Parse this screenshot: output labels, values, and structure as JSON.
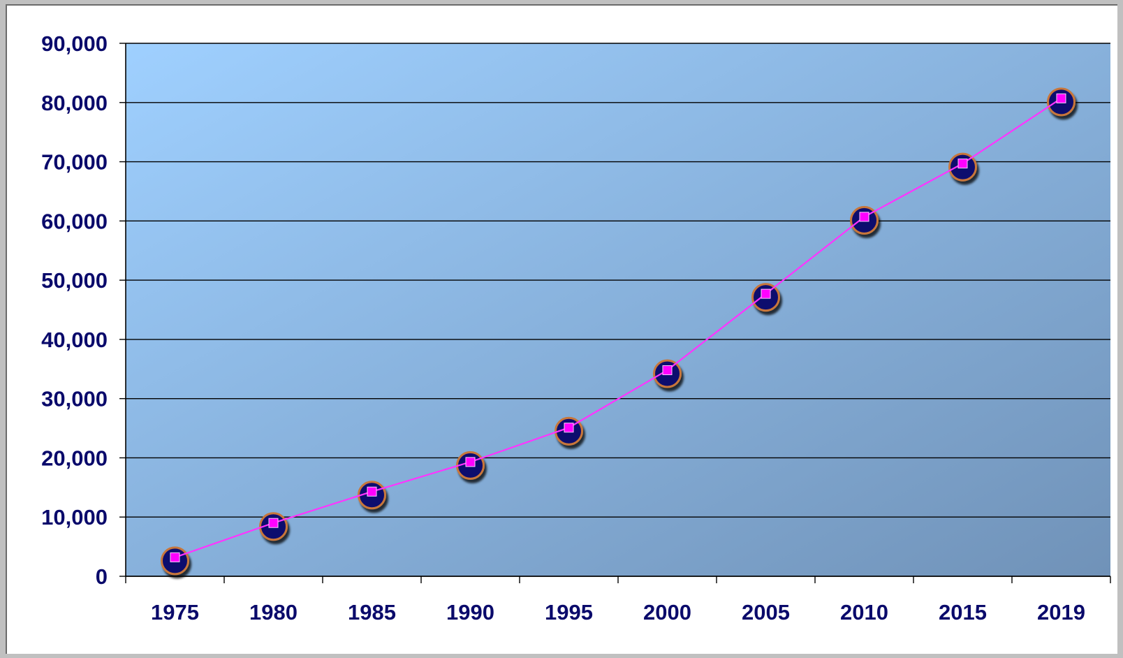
{
  "chart_data": {
    "type": "line",
    "title": "",
    "xlabel": "",
    "ylabel": "",
    "categories": [
      "1975",
      "1980",
      "1985",
      "1990",
      "1995",
      "2000",
      "2005",
      "2010",
      "2015",
      "2019"
    ],
    "series": [
      {
        "values": [
          3200,
          9000,
          14300,
          19300,
          25100,
          34800,
          47700,
          60700,
          69700,
          80700
        ]
      }
    ],
    "ylim": [
      0,
      90000
    ],
    "yticks": [
      "0",
      "10,000",
      "20,000",
      "30,000",
      "40,000",
      "50,000",
      "60,000",
      "70,000",
      "80,000",
      "90,000"
    ],
    "grid": true,
    "colors": {
      "plot_bg_start": "#9fd0ff",
      "plot_bg_end": "#7092b8",
      "line": "#ff33ff",
      "marker_fill": "#ff00ff",
      "bubble_fill": "#0b0b6e",
      "bubble_edge": "#c8763a",
      "text": "#0a0a6b",
      "gridline": "#000000"
    }
  }
}
